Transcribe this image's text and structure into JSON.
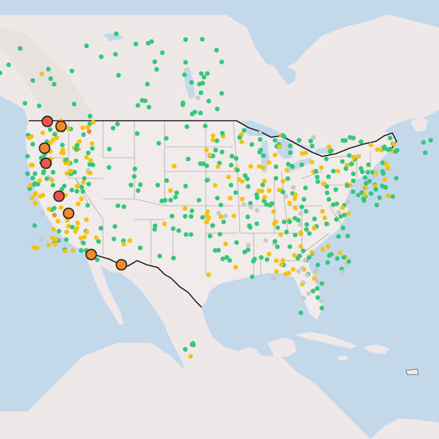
{
  "map": {
    "colors": {
      "water": "#c3d8ea",
      "land_us": "#f1ebe9",
      "land_other": "#eee8e6",
      "mountain": "#e4ddd9",
      "state_border": "#a8a8a8",
      "country_border": "#151515",
      "marker_good": "#34c77b",
      "marker_moderate": "#f4c20d",
      "marker_usg": "#f0892e",
      "marker_unhealthy": "#e8574a",
      "marker_none": "#c9c9c9"
    },
    "marker_categories": [
      "good",
      "moderate",
      "unhealthy-for-sensitive",
      "unhealthy",
      "no-data"
    ],
    "alert_markers": [
      {
        "category": "unhealthy"
      },
      {
        "category": "unhealthy-for-sensitive"
      },
      {
        "category": "unhealthy-for-sensitive"
      },
      {
        "category": "unhealthy"
      },
      {
        "category": "unhealthy"
      },
      {
        "category": "unhealthy-for-sensitive"
      },
      {
        "category": "unhealthy-for-sensitive"
      },
      {
        "category": "unhealthy-for-sensitive"
      }
    ]
  }
}
